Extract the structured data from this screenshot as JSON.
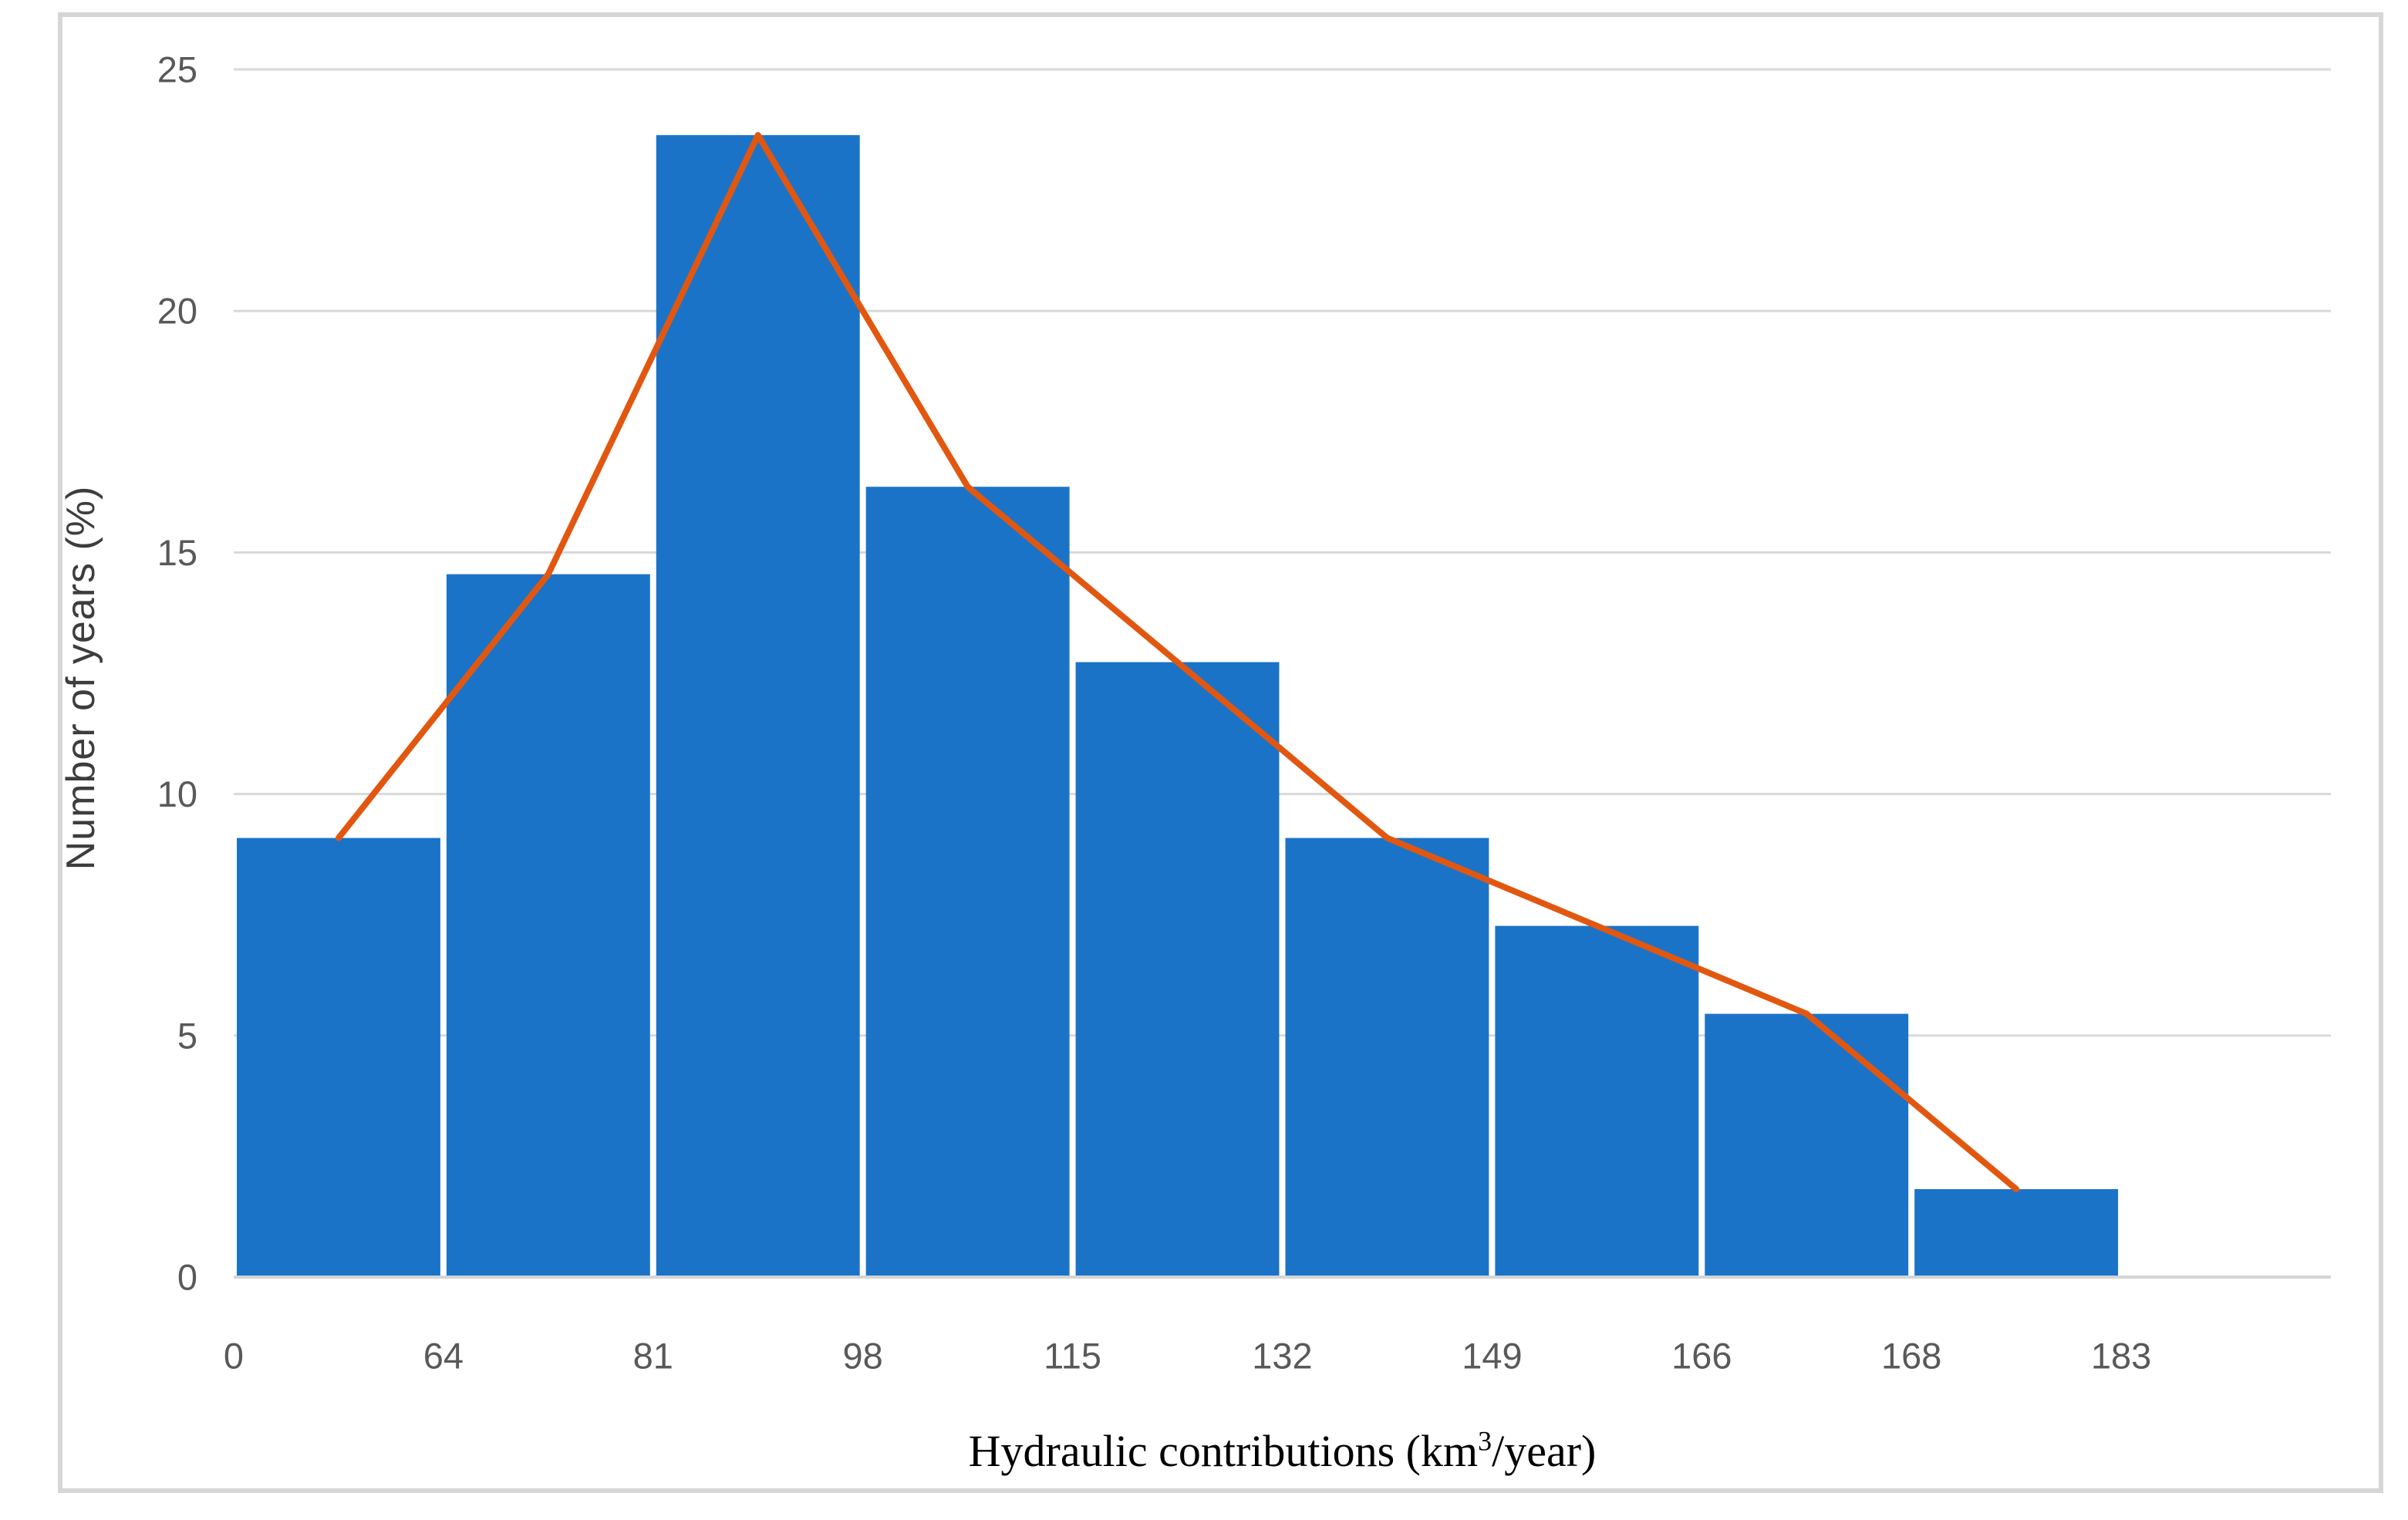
{
  "chart_data": {
    "type": "bar",
    "subtype": "histogram with frequency-polygon line overlay",
    "title": "",
    "xlabel": {
      "prefix": "Hydraulic contributions (km",
      "superscript": "3",
      "suffix": "/year)",
      "full": "Hydraulic contributions (km³/year)"
    },
    "ylabel": "Number of years (%)",
    "bin_edge_labels": [
      "0",
      "64",
      "81",
      "98",
      "115",
      "132",
      "149",
      "166",
      "168",
      "183"
    ],
    "categories": [
      "0-64",
      "64-81",
      "81-98",
      "98-115",
      "115-132",
      "132-149",
      "149-166",
      "166-168",
      "168-183"
    ],
    "series": [
      {
        "name": "histogram-bars",
        "type": "bar",
        "values": [
          9.09,
          14.55,
          23.64,
          16.36,
          12.73,
          9.09,
          7.27,
          5.45,
          1.82
        ]
      },
      {
        "name": "frequency-polygon",
        "type": "line",
        "values": [
          9.09,
          14.55,
          23.64,
          16.36,
          12.73,
          9.09,
          7.27,
          5.45,
          1.82
        ]
      }
    ],
    "ylim": [
      0,
      25
    ],
    "yticks": [
      0,
      5,
      10,
      15,
      20,
      25
    ],
    "grid": "horizontal",
    "legend": "none",
    "colors": {
      "bar_fill": "#1b73c8",
      "line_stroke": "#e2570f",
      "gridline": "#d9d9d9",
      "axis_line": "#d4d4d4",
      "tick_label": "#595959",
      "y_axis_title": "#3d3d3d",
      "x_axis_title": "#000000",
      "figure_border": "#d6d6d6",
      "background": "#ffffff"
    }
  }
}
